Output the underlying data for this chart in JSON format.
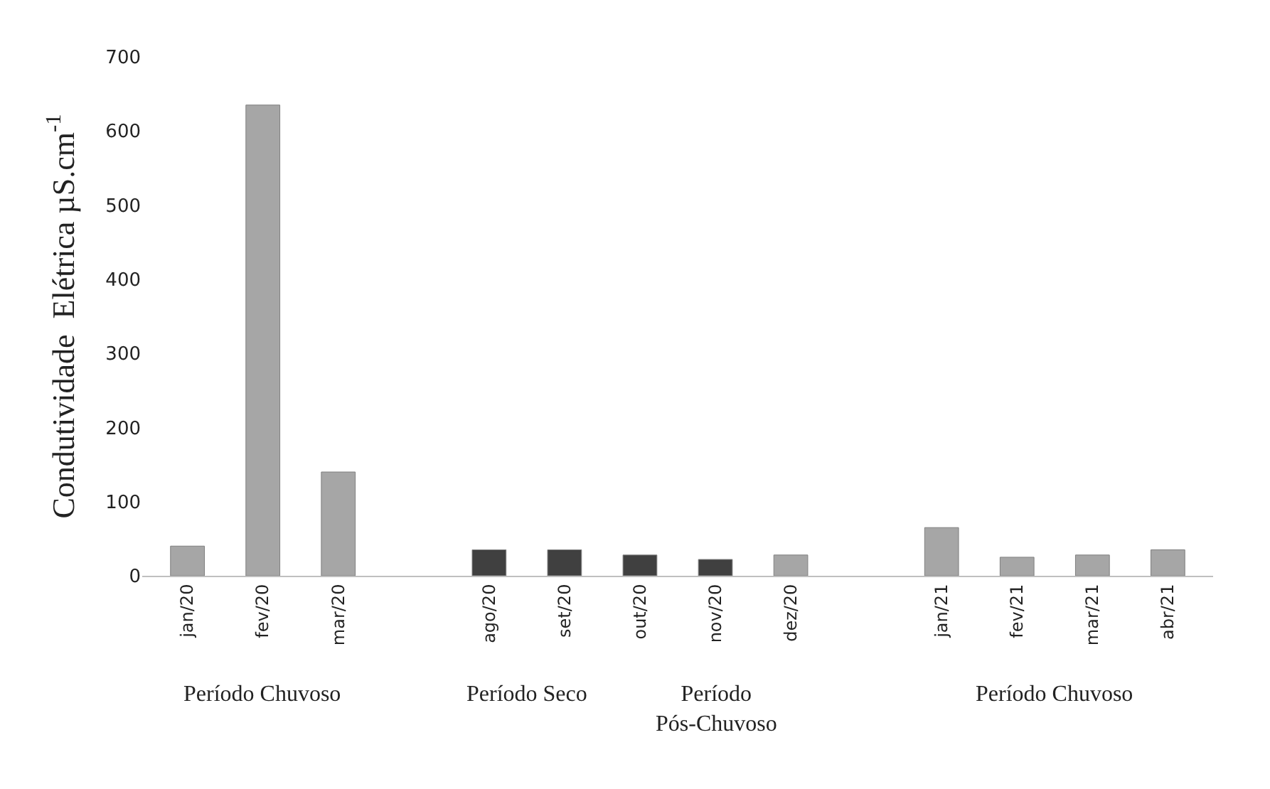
{
  "chart_data": {
    "type": "bar",
    "ylabel": "Condutividade  Elétrica µS.cm$^{-1}$",
    "categories": [
      "jan/20",
      "fev/20",
      "mar/20",
      null,
      "ago/20",
      "set/20",
      "out/20",
      "nov/20",
      "dez/20",
      null,
      "jan/21",
      "fev/21",
      "mar/21",
      "abr/21"
    ],
    "values": [
      40,
      635,
      140,
      null,
      35,
      35,
      28,
      22,
      28,
      null,
      65,
      25,
      28,
      35
    ],
    "colors": [
      "#a6a6a6",
      "#a6a6a6",
      "#a6a6a6",
      null,
      "#404040",
      "#404040",
      "#404040",
      "#404040",
      "#a6a6a6",
      null,
      "#a6a6a6",
      "#a6a6a6",
      "#a6a6a6",
      "#a6a6a6"
    ],
    "ylim": [
      0,
      700
    ],
    "yticks": [
      0,
      100,
      200,
      300,
      400,
      500,
      600,
      700
    ],
    "legend": false,
    "annotations": [
      "Período Chuvoso",
      "Período Seco",
      "Período\nPós-Chuvoso",
      "Período Chuvoso"
    ]
  }
}
